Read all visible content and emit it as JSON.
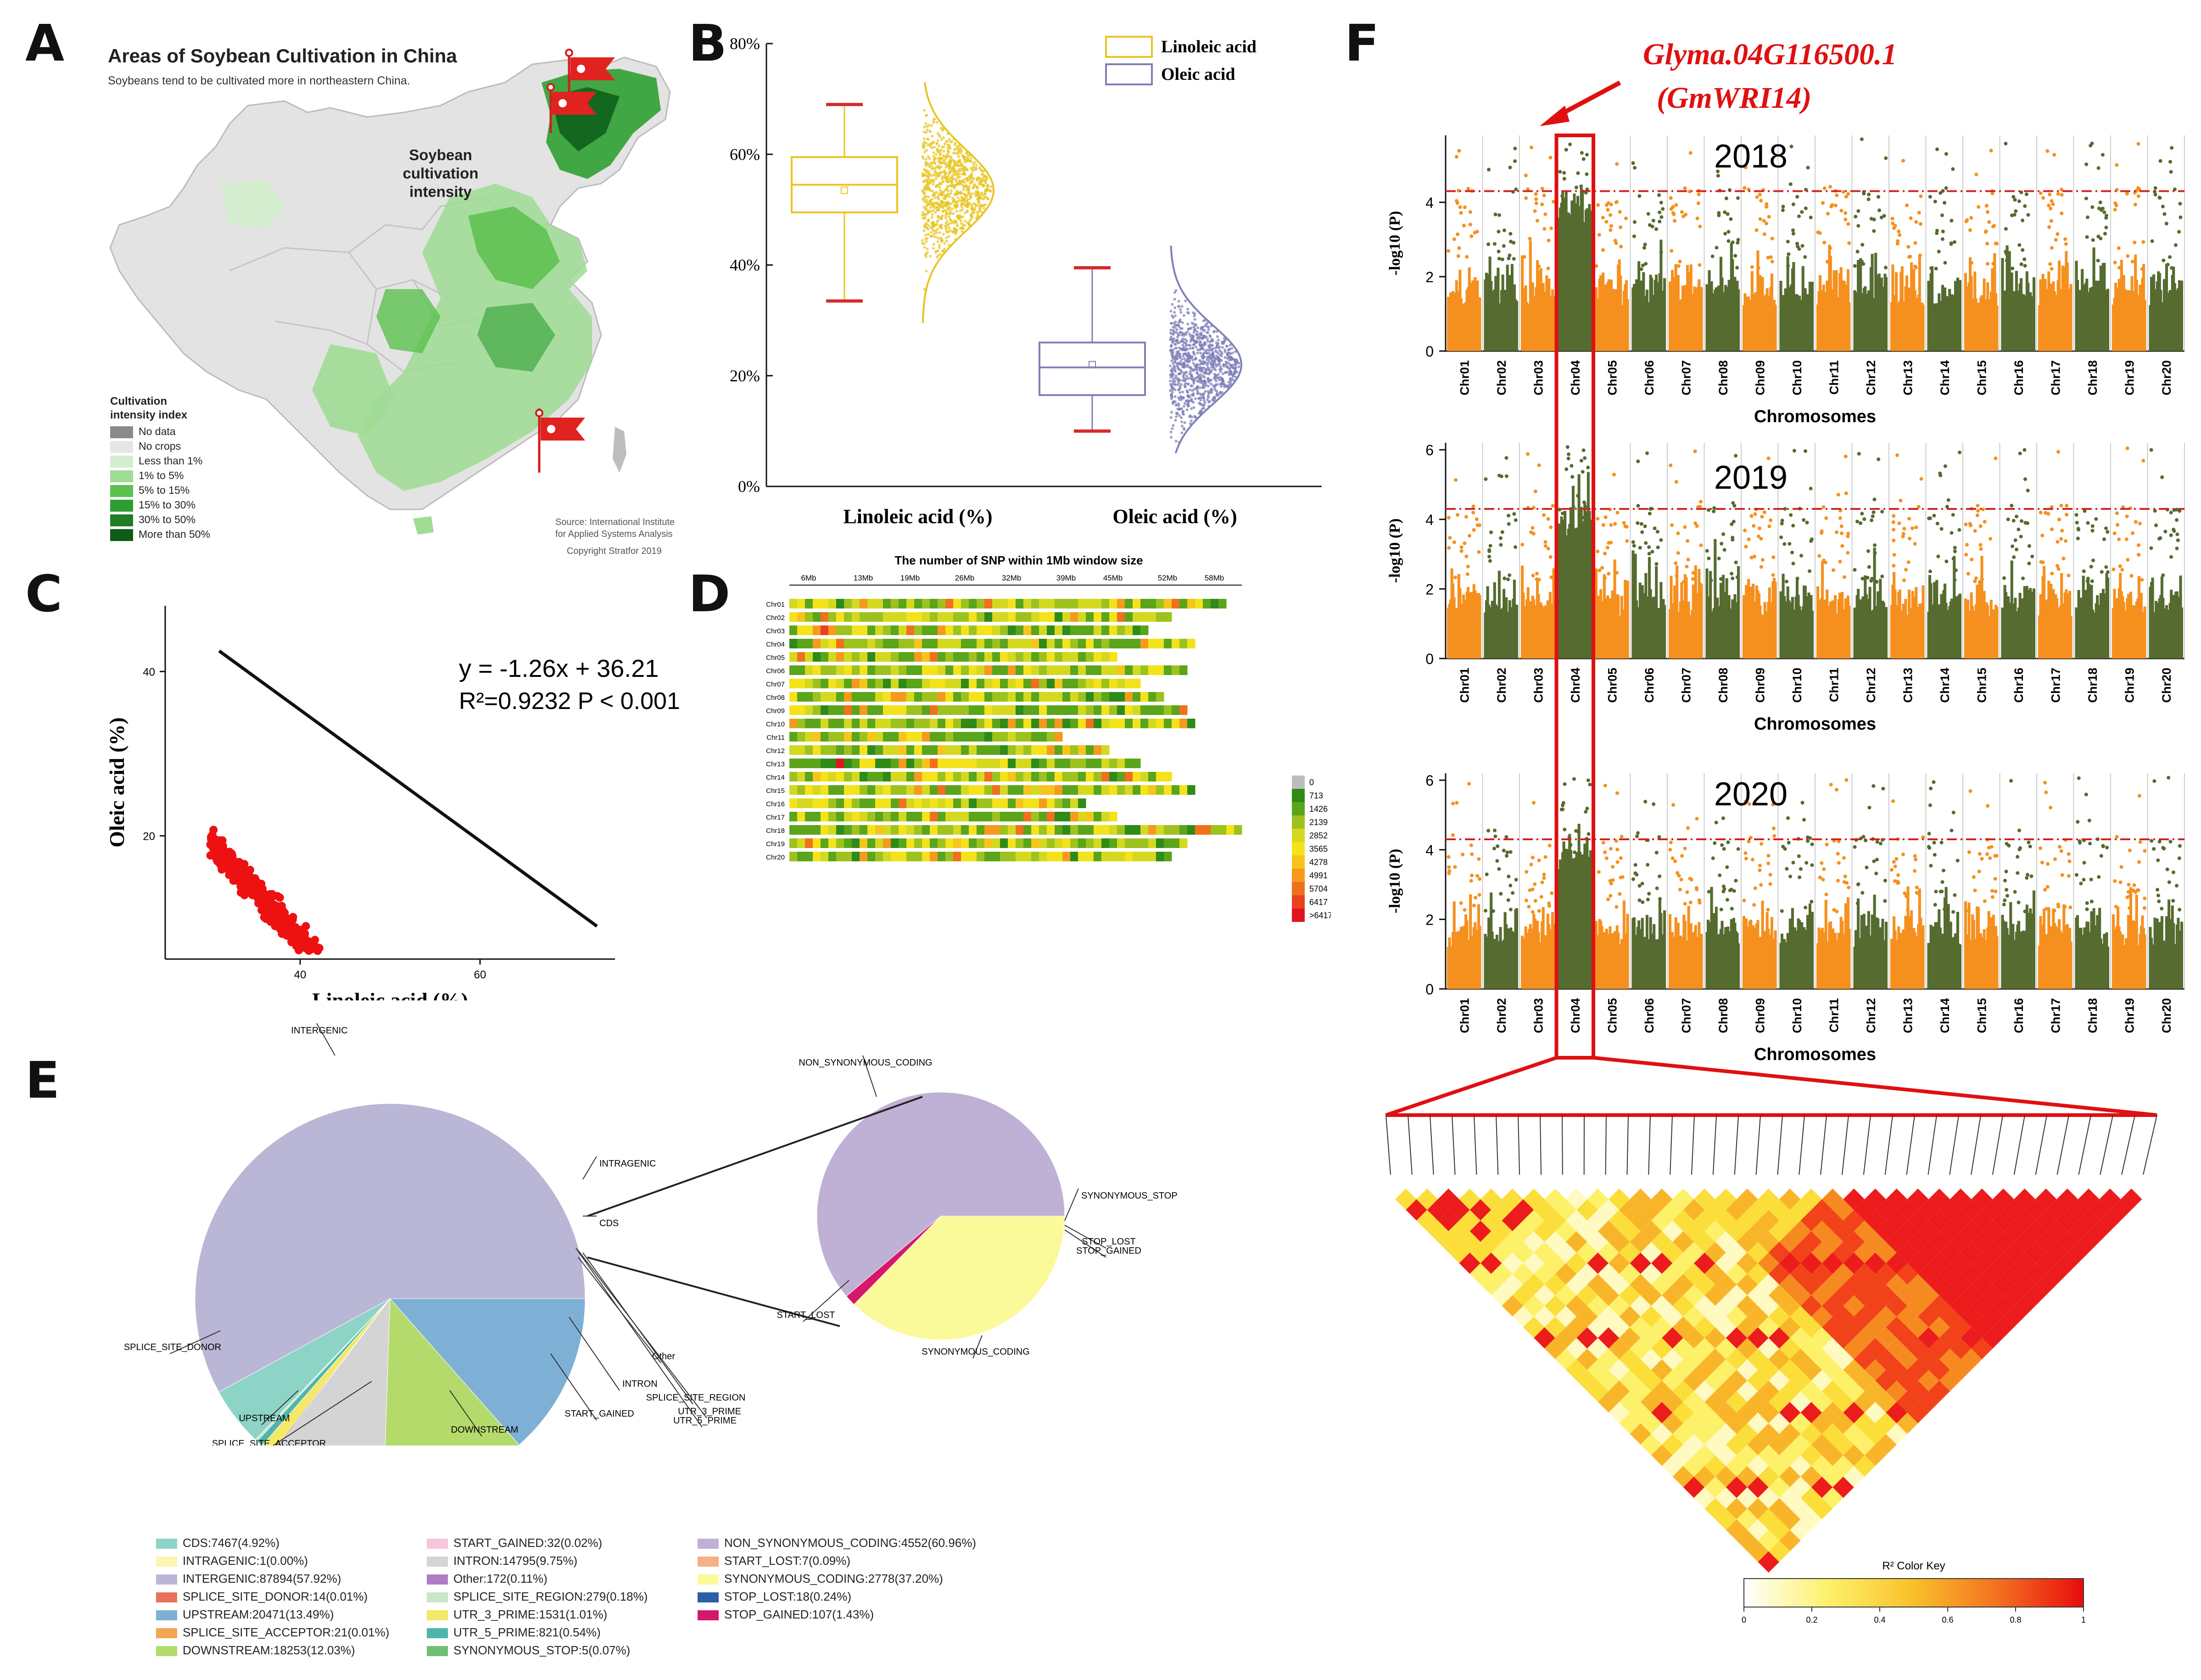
{
  "panels": {
    "a": "A",
    "b": "B",
    "c": "C",
    "d": "D",
    "e": "E",
    "f": "F"
  },
  "map": {
    "title": "Areas of Soybean Cultivation in China",
    "subtitle": "Soybeans tend to be cultivated more in northeastern China.",
    "intensity_label": [
      "Soybean",
      "cultivation",
      "intensity"
    ],
    "legend_title": [
      "Cultivation",
      "intensity index"
    ],
    "legend": [
      {
        "label": "No data",
        "color": "#8a8a8a"
      },
      {
        "label": "No crops",
        "color": "#e6e6e6"
      },
      {
        "label": "Less than 1%",
        "color": "#d4edcf"
      },
      {
        "label": "1% to 5%",
        "color": "#9fdc94"
      },
      {
        "label": "5% to 15%",
        "color": "#5cc04f"
      },
      {
        "label": "15% to 30%",
        "color": "#2f9e32"
      },
      {
        "label": "30% to 50%",
        "color": "#1d7e25"
      },
      {
        "label": "More than 50%",
        "color": "#0d5c17"
      }
    ],
    "source": [
      "Source: International Institute",
      "for Applied Systems Analysis"
    ],
    "copyright": "Copyright Stratfor 2019"
  },
  "chart_data": [
    {
      "id": "B",
      "type": "box",
      "title": "",
      "ylabel": "",
      "ylim": [
        0,
        80
      ],
      "yticks": [
        "0%",
        "20%",
        "40%",
        "60%",
        "80%"
      ],
      "categories": [
        "Linoleic acid (%)",
        "Oleic acid (%)"
      ],
      "legend": [
        {
          "name": "Linoleic acid",
          "color": "#e8c520"
        },
        {
          "name": "Oleic acid",
          "color": "#7f7fb8"
        }
      ],
      "series": [
        {
          "name": "Linoleic acid",
          "min": 33.5,
          "q1": 49.5,
          "median": 54.5,
          "q3": 59.5,
          "max": 69,
          "mean": 53.5,
          "color": "#e8c520"
        },
        {
          "name": "Oleic acid",
          "min": 10,
          "q1": 16.5,
          "median": 21.5,
          "q3": 26,
          "max": 39.5,
          "mean": 22,
          "color": "#7f7fb8"
        }
      ]
    },
    {
      "id": "C",
      "type": "scatter",
      "xlabel": "Linoleic acid (%)",
      "ylabel": "Oleic acid (%)",
      "xticks": [
        "40",
        "60"
      ],
      "yticks": [
        "20",
        "40"
      ],
      "equation": "y = -1.26x + 36.21",
      "r2_text": "R²=0.9232 P < 0.001",
      "fit": {
        "slope": -1.26,
        "intercept": 36.21
      }
    },
    {
      "id": "D",
      "type": "heatmap",
      "title": "The number of SNP within 1Mb window size",
      "xticks": [
        "6Mb",
        "13Mb",
        "19Mb",
        "26Mb",
        "32Mb",
        "39Mb",
        "45Mb",
        "52Mb",
        "58Mb"
      ],
      "rows": [
        "Chr01",
        "Chr02",
        "Chr03",
        "Chr04",
        "Chr05",
        "Chr06",
        "Chr07",
        "Chr08",
        "Chr09",
        "Chr10",
        "Chr11",
        "Chr12",
        "Chr13",
        "Chr14",
        "Chr15",
        "Chr16",
        "Chr17",
        "Chr18",
        "Chr19",
        "Chr20"
      ],
      "row_lengths_mb": [
        56,
        49,
        46,
        52,
        42,
        51,
        45,
        48,
        51,
        52,
        35,
        41,
        45,
        49,
        52,
        38,
        42,
        58,
        51,
        49
      ],
      "color_key": [
        {
          "label": "0",
          "color": "#bdbdbd"
        },
        {
          "label": "713",
          "color": "#2e8b18"
        },
        {
          "label": "1426",
          "color": "#5aa51a"
        },
        {
          "label": "2139",
          "color": "#9dc21e"
        },
        {
          "label": "2852",
          "color": "#d4d91f"
        },
        {
          "label": "3565",
          "color": "#f4e21a"
        },
        {
          "label": "4278",
          "color": "#f7c41a"
        },
        {
          "label": "4991",
          "color": "#f59a1c"
        },
        {
          "label": "5704",
          "color": "#f0701d"
        },
        {
          "label": "6417",
          "color": "#e8421f"
        },
        {
          "label": ">6417",
          "color": "#e0141f"
        }
      ]
    },
    {
      "id": "E-left",
      "type": "pie",
      "slices": [
        {
          "label": "INTERGENIC",
          "value": 57.92,
          "color": "#b9b6d6"
        },
        {
          "label": "CDS",
          "value": 4.92,
          "color": "#8ed4c6"
        },
        {
          "label": "SPLICE_SITE_REGION",
          "value": 0.18,
          "color": "#c8e6c9"
        },
        {
          "label": "UTR_5_PRIME",
          "value": 0.54,
          "color": "#4db6ac"
        },
        {
          "label": "UTR_3_PRIME",
          "value": 1.01,
          "color": "#f3e868"
        },
        {
          "label": "Other",
          "value": 0.11,
          "color": "#9c7fb3"
        },
        {
          "label": "INTRON",
          "value": 9.75,
          "color": "#d4d4d4"
        },
        {
          "label": "DOWNSTREAM",
          "value": 12.03,
          "color": "#b4da6c"
        },
        {
          "label": "UPSTREAM",
          "value": 13.49,
          "color": "#7eb0d5"
        }
      ]
    },
    {
      "id": "E-right",
      "type": "pie",
      "slices": [
        {
          "label": "NON_SYNONYMOUS_CODING",
          "value": 60.96,
          "color": "#bfb1d5"
        },
        {
          "label": "STOP_GAINED",
          "value": 1.43,
          "color": "#d6186b"
        },
        {
          "label": "SYNONYMOUS_CODING",
          "value": 37.2,
          "color": "#fbfa9a"
        }
      ]
    },
    {
      "id": "F",
      "type": "manhattan",
      "xlabel": "Chromosomes",
      "ylabel": "-log10 (P)",
      "chromosomes": [
        "Chr01",
        "Chr02",
        "Chr03",
        "Chr04",
        "Chr05",
        "Chr06",
        "Chr07",
        "Chr08",
        "Chr09",
        "Chr10",
        "Chr11",
        "Chr12",
        "Chr13",
        "Chr14",
        "Chr15",
        "Chr16",
        "Chr17",
        "Chr18",
        "Chr19",
        "Chr20"
      ],
      "colors": [
        "#f5901e",
        "#556b2f"
      ],
      "plots": [
        {
          "year": "2018",
          "yticks": [
            "0",
            "2",
            "4"
          ],
          "ymax": 5.8,
          "threshold": 4.3
        },
        {
          "year": "2019",
          "yticks": [
            "0",
            "2",
            "4",
            "6"
          ],
          "ymax": 6.2,
          "threshold": 4.3
        },
        {
          "year": "2020",
          "yticks": [
            "0",
            "2",
            "4",
            "6"
          ],
          "ymax": 6.2,
          "threshold": 4.3
        }
      ]
    }
  ],
  "e_labels": {
    "INTERGENIC": "INTERGENIC",
    "INTRAGENIC": "INTRAGENIC",
    "CDS": "CDS",
    "SPLICE_SITE_DONOR": "SPLICE_SITE_DONOR",
    "UPSTREAM": "UPSTREAM",
    "SPLICE_SITE_ACCEPTOR": "SPLICE_SITE_ACCEPTOR",
    "DOWNSTREAM": "DOWNSTREAM",
    "START_GAINED": "START_GAINED",
    "INTRON": "INTRON",
    "Other": "Other",
    "SPLICE_SITE_REGION": "SPLICE_SITE_REGION",
    "UTR_3_PRIME": "UTR_3_PRIME",
    "UTR_5_PRIME": "UTR_5_PRIME",
    "NON_SYNONYMOUS_CODING": "NON_SYNONYMOUS_CODING",
    "SYNONYMOUS_STOP": "SYNONYMOUS_STOP",
    "STOP_LOST": "STOP_LOST",
    "STOP_GAINED": "STOP_GAINED",
    "START_LOST": "START_LOST",
    "SYNONYMOUS_CODING": "SYNONYMOUS_CODING"
  },
  "e_legend": [
    {
      "label": "CDS:7467(4.92%)",
      "color": "#8ed4c6"
    },
    {
      "label": "INTRAGENIC:1(0.00%)",
      "color": "#fbf5b0"
    },
    {
      "label": "INTERGENIC:87894(57.92%)",
      "color": "#b9b6d6"
    },
    {
      "label": "SPLICE_SITE_DONOR:14(0.01%)",
      "color": "#e8735a"
    },
    {
      "label": "UPSTREAM:20471(13.49%)",
      "color": "#7eb0d5"
    },
    {
      "label": "SPLICE_SITE_ACCEPTOR:21(0.01%)",
      "color": "#f2a553"
    },
    {
      "label": "DOWNSTREAM:18253(12.03%)",
      "color": "#b4da6c"
    },
    {
      "label": "START_GAINED:32(0.02%)",
      "color": "#f6c6dc"
    },
    {
      "label": "INTRON:14795(9.75%)",
      "color": "#d4d4d4"
    },
    {
      "label": "Other:172(0.11%)",
      "color": "#b07cc6"
    },
    {
      "label": "SPLICE_SITE_REGION:279(0.18%)",
      "color": "#c8e6c9"
    },
    {
      "label": "UTR_3_PRIME:1531(1.01%)",
      "color": "#f3e868"
    },
    {
      "label": "UTR_5_PRIME:821(0.54%)",
      "color": "#4db6ac"
    },
    {
      "label": "SYNONYMOUS_STOP:5(0.07%)",
      "color": "#6fbf73"
    },
    {
      "label": "NON_SYNONYMOUS_CODING:4552(60.96%)",
      "color": "#bfb1d5"
    },
    {
      "label": "START_LOST:7(0.09%)",
      "color": "#f4b183"
    },
    {
      "label": "SYNONYMOUS_CODING:2778(37.20%)",
      "color": "#fbfa9a"
    },
    {
      "label": "STOP_LOST:18(0.24%)",
      "color": "#2c5fa6"
    },
    {
      "label": "STOP_GAINED:107(1.43%)",
      "color": "#d6186b"
    }
  ],
  "gene": {
    "id": "Glyma.04G116500.1",
    "alias": "(GmWRI14)"
  },
  "ld_key": {
    "title": "R² Color Key",
    "ticks": [
      "0",
      "0.2",
      "0.4",
      "0.6",
      "0.8",
      "1"
    ]
  }
}
